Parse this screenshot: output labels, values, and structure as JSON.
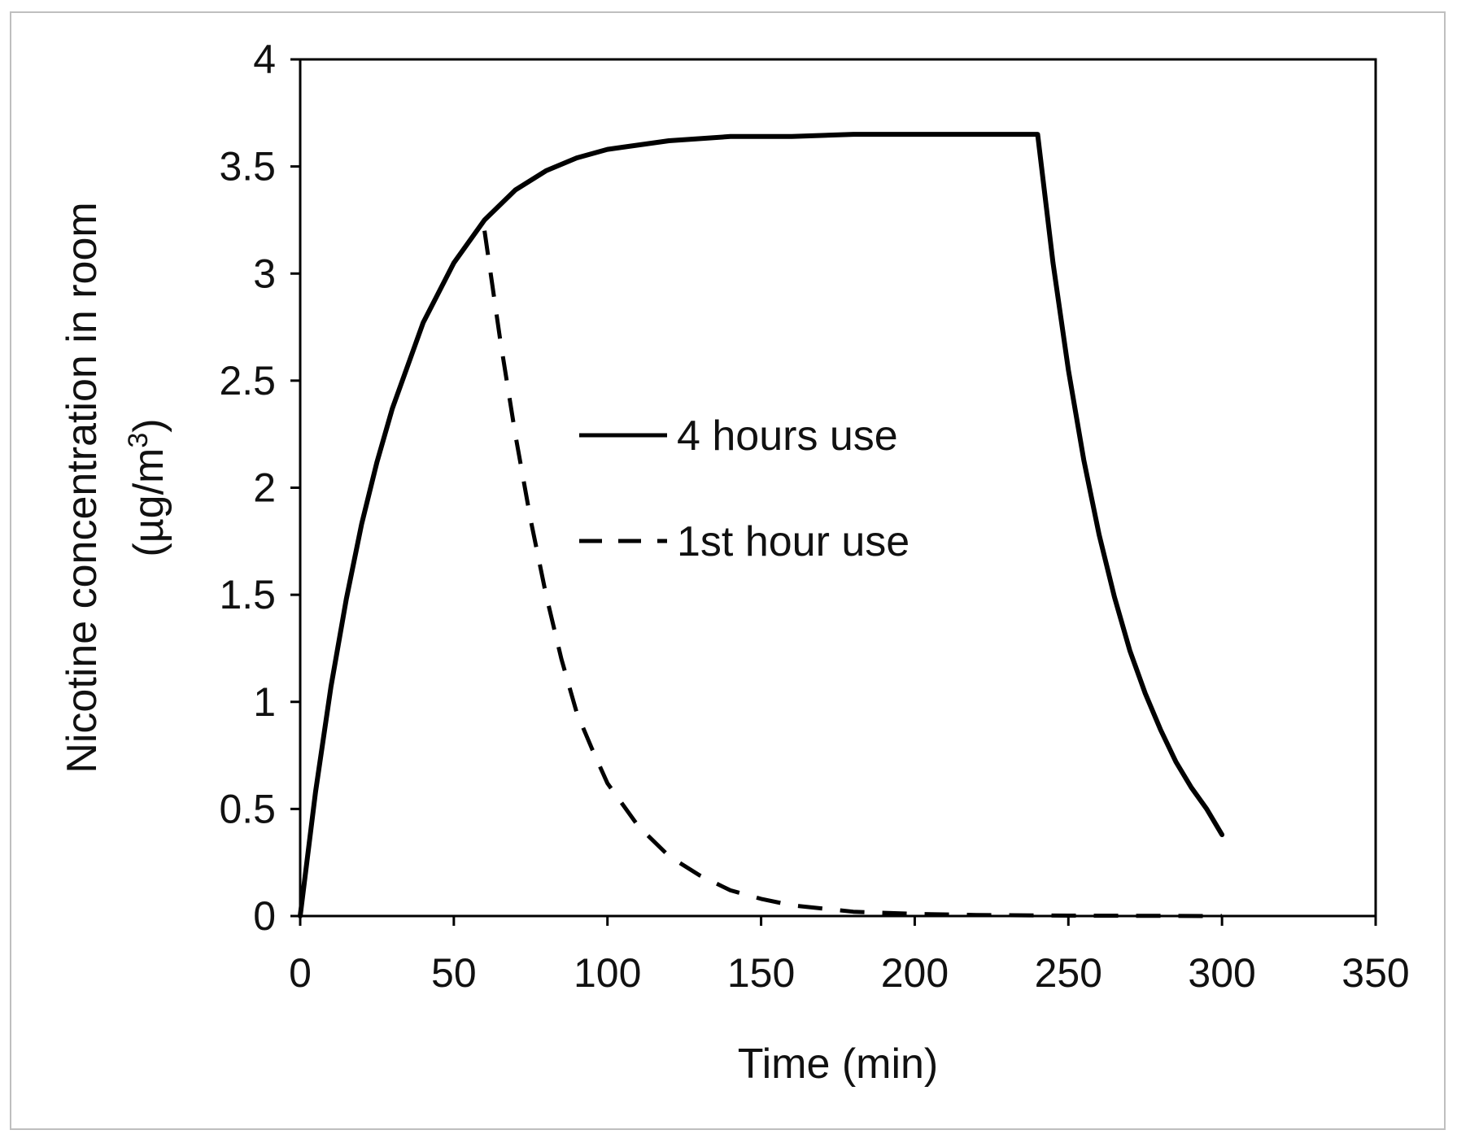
{
  "chart_data": {
    "type": "line",
    "title": "",
    "xlabel": "Time (min)",
    "ylabel_line1": "Nicotine concentration in room",
    "ylabel_line2_prefix": "(µg/m",
    "ylabel_line2_sup": "3",
    "ylabel_line2_suffix": ")",
    "xlim": [
      0,
      350
    ],
    "ylim": [
      0,
      4
    ],
    "xticks": [
      "0",
      "50",
      "100",
      "150",
      "200",
      "250",
      "300",
      "350"
    ],
    "yticks": [
      "0",
      "0.5",
      "1",
      "1.5",
      "2",
      "2.5",
      "3",
      "3.5",
      "4"
    ],
    "grid": false,
    "legend_position": "center",
    "series": [
      {
        "name": "4 hours use",
        "style": "solid",
        "color": "#000000",
        "x": [
          0,
          5,
          10,
          15,
          20,
          25,
          30,
          40,
          50,
          60,
          70,
          80,
          90,
          100,
          120,
          140,
          160,
          180,
          200,
          220,
          240,
          245,
          250,
          255,
          260,
          265,
          270,
          275,
          280,
          285,
          290,
          295,
          300
        ],
        "y": [
          0,
          0.58,
          1.07,
          1.48,
          1.83,
          2.12,
          2.37,
          2.77,
          3.05,
          3.25,
          3.39,
          3.48,
          3.54,
          3.58,
          3.62,
          3.64,
          3.64,
          3.65,
          3.65,
          3.65,
          3.65,
          3.05,
          2.55,
          2.13,
          1.78,
          1.49,
          1.24,
          1.04,
          0.87,
          0.72,
          0.6,
          0.5,
          0.38
        ]
      },
      {
        "name": "1st hour use",
        "style": "dashed",
        "color": "#000000",
        "x": [
          60,
          65,
          70,
          75,
          80,
          85,
          90,
          95,
          100,
          110,
          120,
          130,
          140,
          150,
          160,
          170,
          180,
          200,
          220,
          250,
          300
        ],
        "y": [
          3.2,
          2.7,
          2.25,
          1.85,
          1.5,
          1.2,
          0.95,
          0.78,
          0.62,
          0.42,
          0.28,
          0.19,
          0.12,
          0.08,
          0.05,
          0.035,
          0.02,
          0.01,
          0.005,
          0.002,
          0
        ]
      }
    ]
  }
}
